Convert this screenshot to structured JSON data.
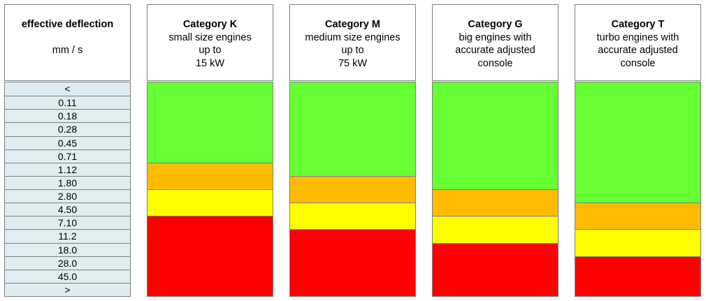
{
  "chart_data": {
    "type": "table",
    "scale_header": {
      "title": "effective deflection",
      "unit": "mm / s"
    },
    "scale_rows": [
      "<",
      "0.11",
      "0.18",
      "0.28",
      "0.45",
      "0.71",
      "1.12",
      "1.80",
      "2.80",
      "4.50",
      "7.10",
      "11.2",
      "18.0",
      "28.0",
      "45.0",
      ">"
    ],
    "zone_colors": {
      "green": "#66ff33",
      "orange": "#ffbb00",
      "yellow": "#ffff00",
      "red": "#ff0000"
    },
    "categories": [
      {
        "title": "Category K",
        "lines": [
          "small size engines",
          "up to",
          "15 kW"
        ],
        "bands": [
          {
            "zone": "green",
            "from": "<",
            "to": "0.71"
          },
          {
            "zone": "orange",
            "from": "1.12",
            "to": "1.80"
          },
          {
            "zone": "yellow",
            "from": "2.80",
            "to": "4.50"
          },
          {
            "zone": "red",
            "from": "7.10",
            "to": ">"
          }
        ]
      },
      {
        "title": "Category M",
        "lines": [
          "medium size engines",
          "up to",
          "75 kW"
        ],
        "bands": [
          {
            "zone": "green",
            "from": "<",
            "to": "1.12"
          },
          {
            "zone": "orange",
            "from": "1.80",
            "to": "2.80"
          },
          {
            "zone": "yellow",
            "from": "4.50",
            "to": "7.10"
          },
          {
            "zone": "red",
            "from": "11.2",
            "to": ">"
          }
        ]
      },
      {
        "title": "Category G",
        "lines": [
          "big engines with",
          "accurate adjusted",
          "console"
        ],
        "bands": [
          {
            "zone": "green",
            "from": "<",
            "to": "1.80"
          },
          {
            "zone": "orange",
            "from": "2.80",
            "to": "4.50"
          },
          {
            "zone": "yellow",
            "from": "7.10",
            "to": "11.2"
          },
          {
            "zone": "red",
            "from": "18.0",
            "to": ">"
          }
        ]
      },
      {
        "title": "Category T",
        "lines": [
          "turbo engines with",
          "accurate adjusted",
          "console"
        ],
        "bands": [
          {
            "zone": "green",
            "from": "<",
            "to": "2.80"
          },
          {
            "zone": "orange",
            "from": "4.50",
            "to": "7.10"
          },
          {
            "zone": "yellow",
            "from": "11.2",
            "to": "18.0"
          },
          {
            "zone": "red",
            "from": "28.0",
            "to": ">"
          }
        ]
      }
    ]
  }
}
